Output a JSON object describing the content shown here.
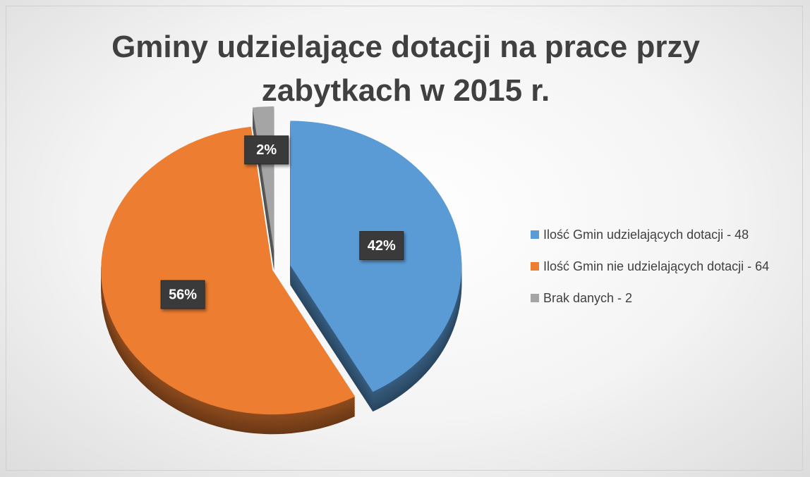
{
  "chart_data": {
    "type": "pie",
    "title": "Gminy udzielające dotacji na prace przy zabytkach w 2015 r.",
    "categories": [
      "Ilość Gmin udzielających dotacji - 48",
      "Ilość Gmin nie udzielających dotacji - 64",
      "Brak danych - 2"
    ],
    "values": [
      42,
      56,
      2
    ],
    "value_labels": [
      "42%",
      "56%",
      "2%"
    ],
    "colors": [
      "#5b9bd5",
      "#ed7d31",
      "#a5a5a5"
    ],
    "legend": "right"
  }
}
